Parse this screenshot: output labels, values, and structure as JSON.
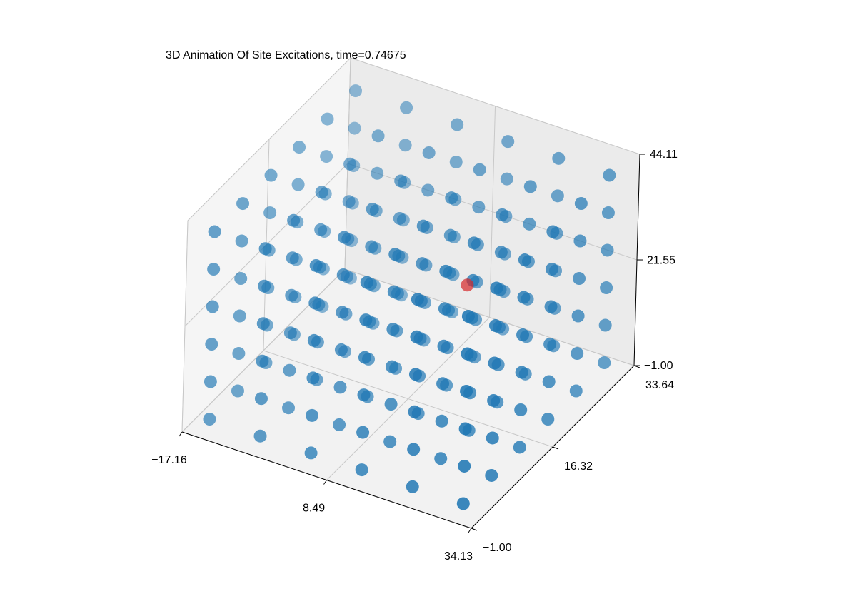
{
  "chart_data": {
    "type": "scatter3d",
    "title": "3D Animation Of Site Excitations, time=0.74675",
    "xlim": [
      -17.16,
      34.13
    ],
    "ylim": [
      -1,
      33.64
    ],
    "zlim": [
      -1,
      44.11
    ],
    "xticks": [
      {
        "value": -17.16,
        "label": "−17.16"
      },
      8.49,
      34.13
    ],
    "yticks": [
      {
        "value": -1,
        "label": "−1.00"
      },
      16.32,
      33.64
    ],
    "zticks": [
      {
        "value": -1,
        "label": "−1.00"
      },
      21.55,
      44.11
    ],
    "grid": true,
    "series": [
      {
        "color": "#1f77b4",
        "x": [
          -14,
          -14,
          -14,
          -14,
          -14,
          -14,
          -14,
          -14,
          -14,
          -14,
          -14,
          -14,
          -14,
          -14,
          -14,
          -14,
          -14,
          -14,
          -14,
          -14,
          -14,
          -14,
          -14,
          -14,
          -14,
          -14,
          -14,
          -14,
          -14,
          -14,
          -14,
          -14,
          -14,
          -14,
          -14,
          -14,
          -5,
          -5,
          -5,
          -5,
          -5,
          -5,
          -5,
          -5,
          -5,
          -5,
          -5,
          -5,
          -5,
          -5,
          -5,
          -5,
          -5,
          -5,
          -5,
          -5,
          -5,
          -5,
          -5,
          -5,
          -5,
          -5,
          -5,
          -5,
          -5,
          -5,
          -5,
          -5,
          -5,
          -5,
          -5,
          -5,
          4,
          4,
          4,
          4,
          4,
          4,
          4,
          4,
          4,
          4,
          4,
          4,
          4,
          4,
          4,
          4,
          4,
          4,
          4,
          4,
          4,
          4,
          4,
          4,
          4,
          4,
          4,
          4,
          4,
          4,
          4,
          4,
          4,
          4,
          4,
          4,
          13,
          13,
          13,
          13,
          13,
          13,
          13,
          13,
          13,
          13,
          13,
          13,
          13,
          13,
          13,
          13,
          13,
          13,
          13,
          13,
          13,
          13,
          13,
          13,
          13,
          13,
          13,
          13,
          13,
          13,
          13,
          13,
          13,
          13,
          13,
          13,
          22,
          22,
          22,
          22,
          22,
          22,
          22,
          22,
          22,
          22,
          22,
          22,
          22,
          22,
          22,
          22,
          22,
          22,
          22,
          22,
          22,
          22,
          22,
          22,
          22,
          22,
          22,
          22,
          22,
          22,
          22,
          22,
          22,
          22,
          22,
          22,
          31,
          31,
          31,
          31,
          31,
          31,
          31,
          31,
          31,
          31,
          31,
          31,
          31,
          31,
          31,
          31,
          31,
          31,
          31,
          31,
          31,
          31,
          31,
          31,
          31,
          31,
          31,
          31,
          31,
          31,
          31,
          31,
          31,
          31,
          31,
          31
        ],
        "y": [
          1,
          1,
          1,
          1,
          1,
          1,
          7,
          7,
          7,
          7,
          7,
          7,
          13,
          13,
          13,
          13,
          13,
          13,
          19,
          19,
          19,
          19,
          19,
          19,
          25,
          25,
          25,
          25,
          25,
          25,
          31,
          31,
          31,
          31,
          31,
          31,
          1,
          1,
          1,
          1,
          1,
          1,
          7,
          7,
          7,
          7,
          7,
          7,
          13,
          13,
          13,
          13,
          13,
          13,
          19,
          19,
          19,
          19,
          19,
          19,
          25,
          25,
          25,
          25,
          25,
          25,
          31,
          31,
          31,
          31,
          31,
          31,
          1,
          1,
          1,
          1,
          1,
          1,
          7,
          7,
          7,
          7,
          7,
          7,
          13,
          13,
          13,
          13,
          13,
          13,
          19,
          19,
          19,
          19,
          19,
          19,
          25,
          25,
          25,
          25,
          25,
          25,
          31,
          31,
          31,
          31,
          31,
          31,
          1,
          1,
          1,
          1,
          1,
          1,
          7,
          7,
          7,
          7,
          7,
          7,
          13,
          13,
          13,
          13,
          13,
          13,
          19,
          19,
          19,
          19,
          19,
          19,
          25,
          25,
          25,
          25,
          25,
          25,
          31,
          31,
          31,
          31,
          31,
          31,
          1,
          1,
          1,
          1,
          1,
          1,
          7,
          7,
          7,
          7,
          7,
          7,
          13,
          13,
          13,
          13,
          13,
          13,
          19,
          19,
          19,
          19,
          19,
          19,
          25,
          25,
          25,
          25,
          25,
          25,
          31,
          31,
          31,
          31,
          31,
          31,
          1,
          1,
          1,
          1,
          1,
          1,
          7,
          7,
          7,
          7,
          7,
          7,
          13,
          13,
          13,
          13,
          13,
          13,
          19,
          19,
          19,
          19,
          19,
          19,
          25,
          25,
          25,
          25,
          25,
          25,
          31,
          31,
          31,
          31,
          31,
          31
        ],
        "z": [
          1,
          9,
          17,
          25,
          33,
          41,
          1,
          9,
          17,
          25,
          33,
          41,
          1,
          9,
          17,
          25,
          33,
          41,
          1,
          9,
          17,
          25,
          33,
          41,
          1,
          9,
          17,
          25,
          33,
          41,
          1,
          9,
          17,
          25,
          33,
          41,
          1,
          9,
          17,
          25,
          33,
          41,
          1,
          9,
          17,
          25,
          33,
          41,
          1,
          9,
          17,
          25,
          33,
          41,
          1,
          9,
          17,
          25,
          33,
          41,
          1,
          9,
          17,
          25,
          33,
          41,
          1,
          9,
          17,
          25,
          33,
          41,
          1,
          9,
          17,
          25,
          33,
          41,
          1,
          9,
          17,
          25,
          33,
          41,
          1,
          9,
          17,
          25,
          33,
          41,
          1,
          9,
          17,
          25,
          33,
          41,
          1,
          9,
          17,
          25,
          33,
          41,
          1,
          9,
          17,
          25,
          33,
          41,
          1,
          9,
          17,
          25,
          33,
          41,
          1,
          9,
          17,
          25,
          33,
          41,
          1,
          9,
          17,
          25,
          33,
          41,
          1,
          9,
          17,
          25,
          33,
          41,
          1,
          9,
          17,
          25,
          33,
          41,
          1,
          9,
          17,
          25,
          33,
          41,
          1,
          9,
          17,
          25,
          33,
          41,
          1,
          9,
          17,
          25,
          33,
          41,
          1,
          9,
          17,
          25,
          33,
          41,
          1,
          9,
          17,
          25,
          33,
          41,
          1,
          9,
          17,
          25,
          33,
          41,
          1,
          9,
          17,
          25,
          33,
          41,
          1,
          9,
          17,
          25,
          33,
          41,
          1,
          9,
          17,
          25,
          33,
          41,
          1,
          9,
          17,
          25,
          33,
          41,
          1,
          9,
          17,
          25,
          33,
          41,
          1,
          9,
          17,
          25,
          33,
          41,
          1,
          9,
          17,
          25,
          33,
          41
        ]
      },
      {
        "color": "#d62728",
        "x": [
          17
        ],
        "y": [
          18
        ],
        "z": [
          25
        ]
      }
    ]
  }
}
